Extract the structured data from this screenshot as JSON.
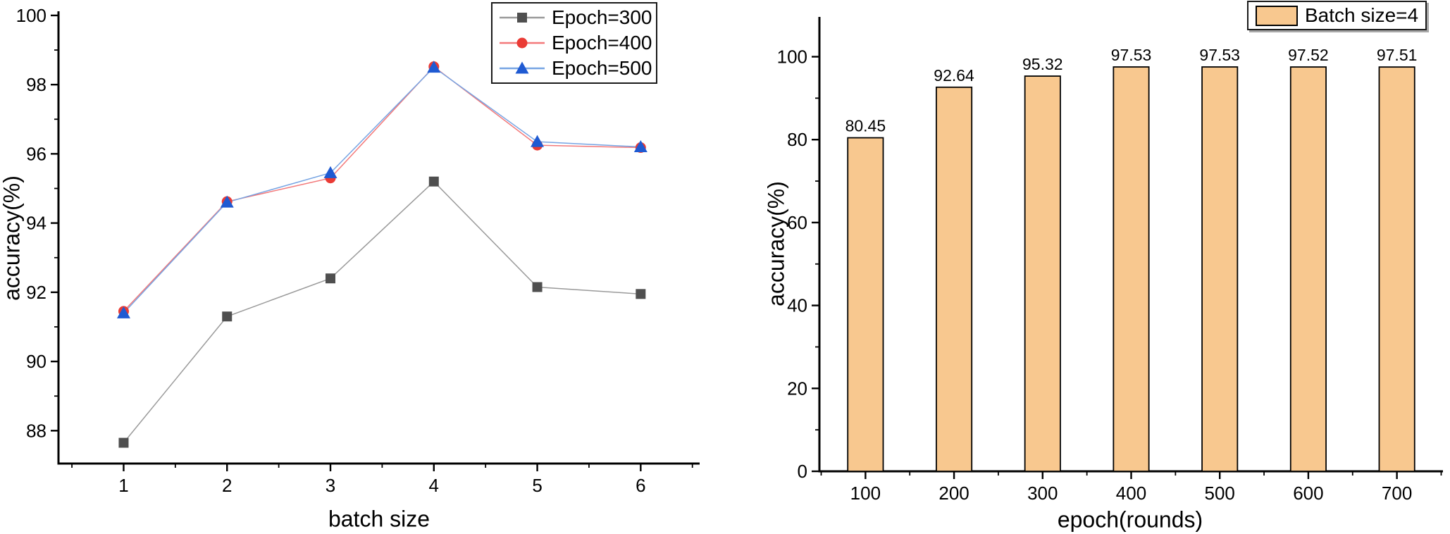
{
  "chart_data": [
    {
      "type": "line",
      "title": "",
      "xlabel": "batch size",
      "ylabel": "accuracy(%)",
      "x": [
        1,
        2,
        3,
        4,
        5,
        6
      ],
      "x_ticks": [
        1,
        2,
        3,
        4,
        5,
        6
      ],
      "x_minor_ticks": [
        0.5,
        1.5,
        2.5,
        3.5,
        4.5,
        5.5,
        6.5
      ],
      "y_ticks": [
        88,
        90,
        92,
        94,
        96,
        98,
        100
      ],
      "y_minor_ticks": [
        89,
        91,
        93,
        95,
        97,
        99
      ],
      "xlim": [
        0.37,
        6.57
      ],
      "ylim": [
        87.05,
        100.12
      ],
      "grid": false,
      "legend_position": "top-right",
      "axis_color": "#000000",
      "series": [
        {
          "name": "Epoch=300",
          "marker": "square",
          "marker_color": "#4f4f4f",
          "line_color": "#9a9a9a",
          "values": [
            87.65,
            91.3,
            92.4,
            95.2,
            92.15,
            91.95
          ]
        },
        {
          "name": "Epoch=400",
          "marker": "circle",
          "marker_color": "#ea3b35",
          "line_color": "#f3797a",
          "values": [
            91.45,
            94.62,
            95.3,
            98.52,
            96.25,
            96.18
          ]
        },
        {
          "name": "Epoch=500",
          "marker": "triangle",
          "marker_color": "#1f5ad2",
          "line_color": "#76a4e3",
          "values": [
            91.4,
            94.6,
            95.45,
            98.5,
            96.35,
            96.2
          ]
        }
      ]
    },
    {
      "type": "bar",
      "title": "",
      "xlabel": "epoch(rounds)",
      "ylabel": "accuracy(%)",
      "categories": [
        100,
        200,
        300,
        400,
        500,
        600,
        700
      ],
      "values": [
        80.45,
        92.64,
        95.32,
        97.53,
        97.53,
        97.52,
        97.51
      ],
      "value_labels": [
        "80.45",
        "92.64",
        "95.32",
        "97.53",
        "97.53",
        "97.52",
        "97.51"
      ],
      "x_minor_ticks": [
        50,
        150,
        250,
        350,
        450,
        550,
        650,
        750
      ],
      "y_ticks": [
        0,
        20,
        40,
        60,
        80,
        100
      ],
      "y_minor_ticks": [
        10,
        30,
        50,
        70,
        90
      ],
      "xlim": [
        48,
        752
      ],
      "ylim": [
        0,
        109.6
      ],
      "bar_width_units": 40,
      "bar_color": "#f8c88f",
      "bar_edge_color": "#000000",
      "grid": false,
      "legend_label": "Batch size=4",
      "legend_position": "top-right",
      "axis_color": "#000000"
    }
  ]
}
